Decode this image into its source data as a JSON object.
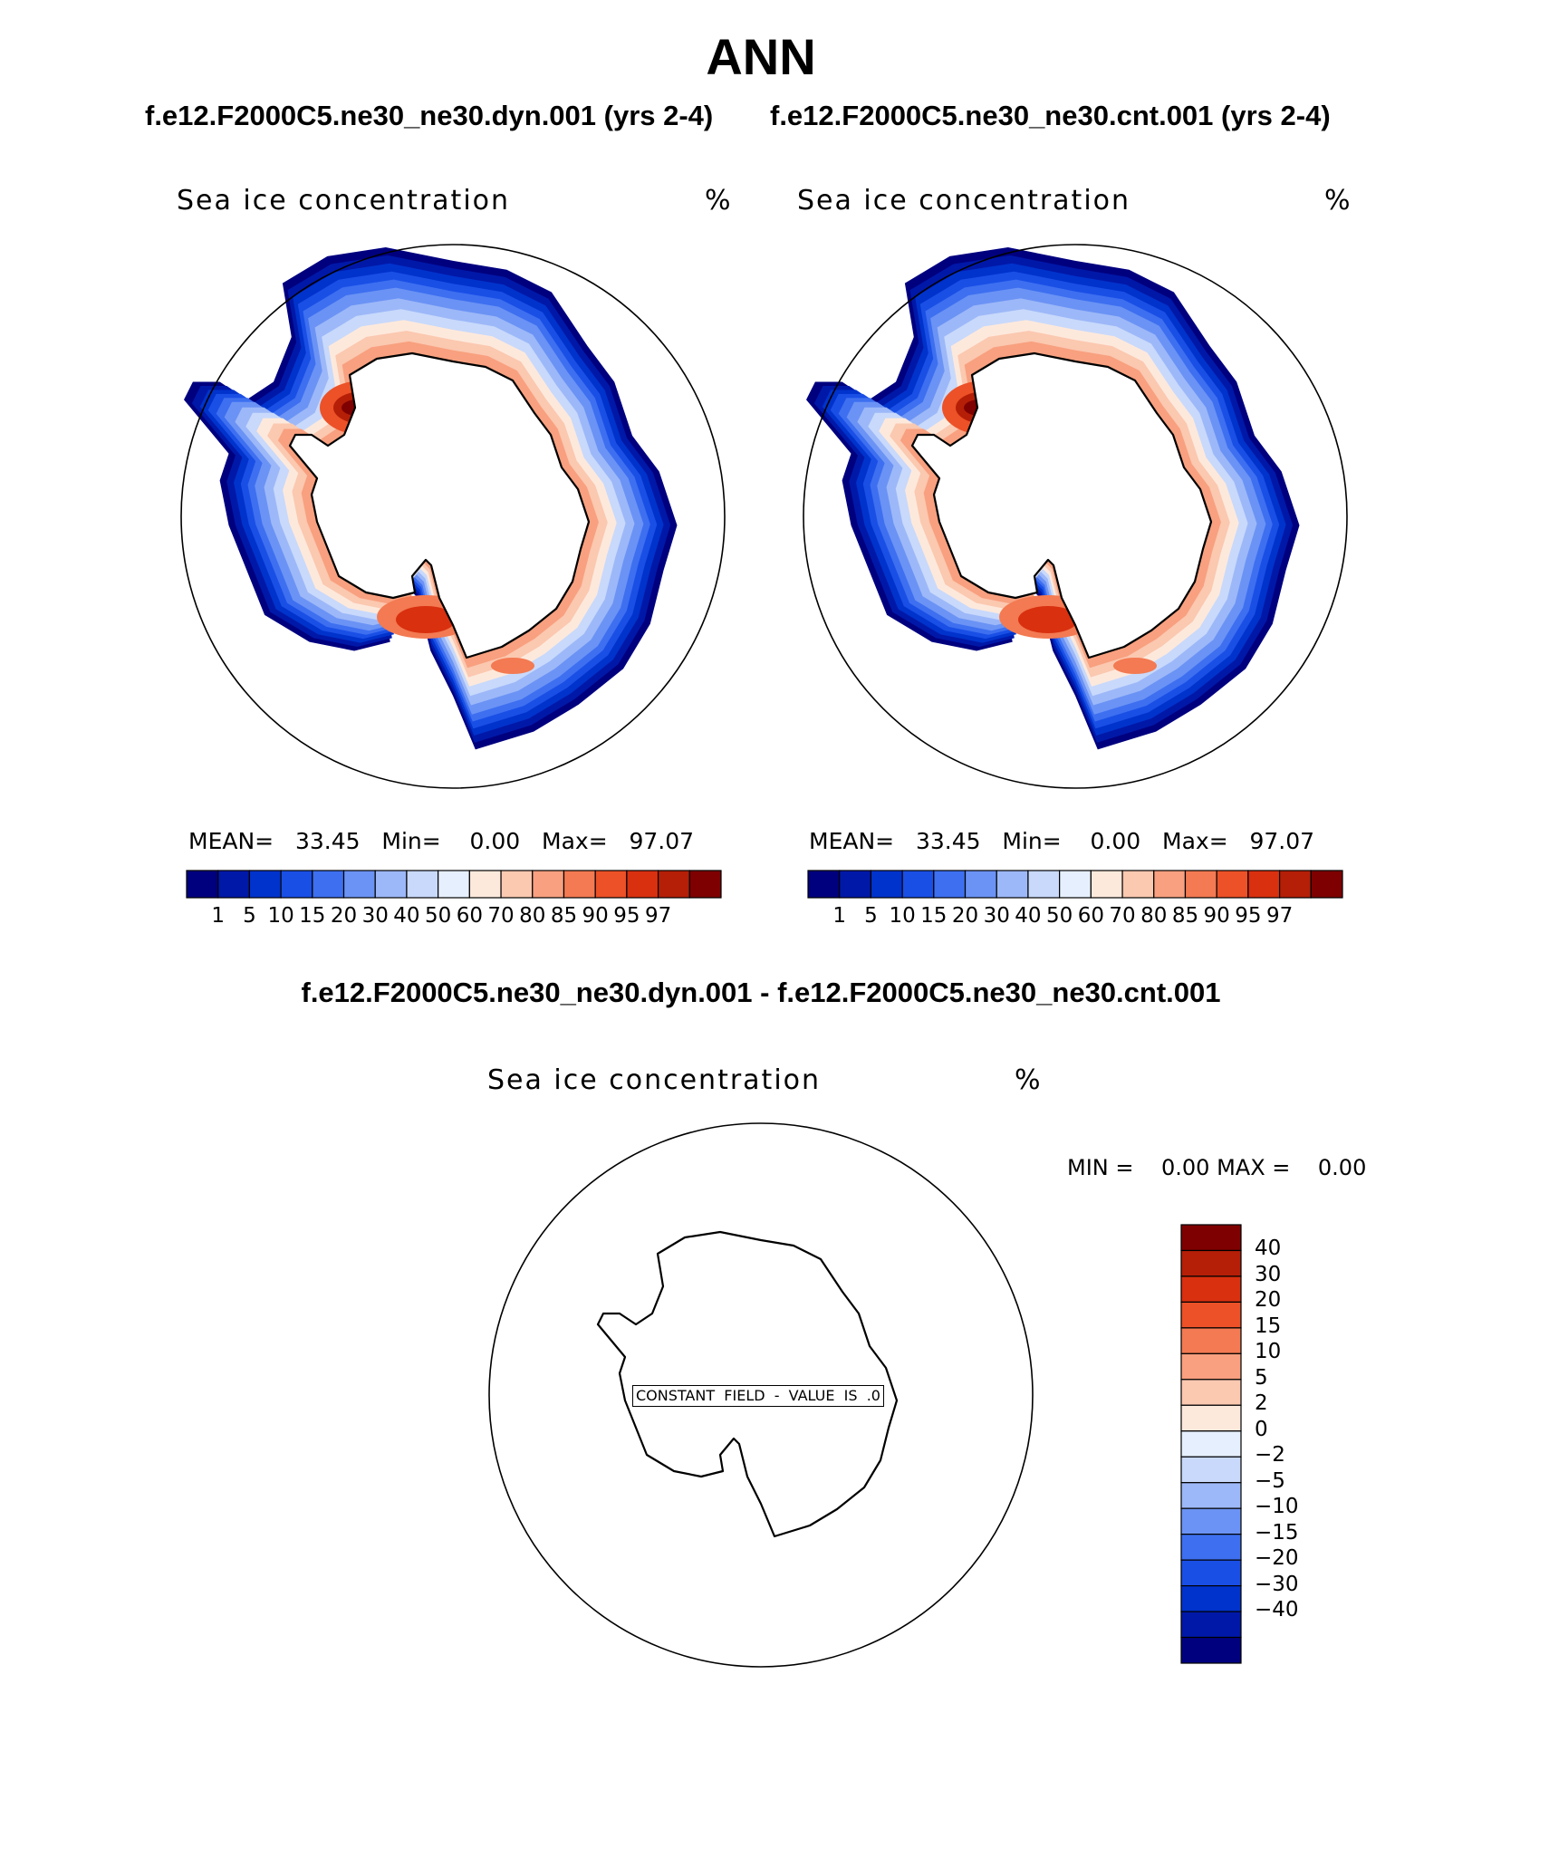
{
  "title": "ANN",
  "case_titles": {
    "left": "f.e12.F2000C5.ne30_ne30.dyn.001 (yrs 2-4)",
    "right": "f.e12.F2000C5.ne30_ne30.cnt.001 (yrs 2-4)"
  },
  "diff_title": "f.e12.F2000C5.ne30_ne30.dyn.001 - f.e12.F2000C5.ne30_ne30.cnt.001",
  "panels": [
    {
      "variable": "Sea ice concentration",
      "units": "%",
      "mean_label": "MEAN=",
      "mean": "33.45",
      "min_label": "Min=",
      "min": "0.00",
      "max_label": "Max=",
      "max": "97.07"
    },
    {
      "variable": "Sea ice concentration",
      "units": "%",
      "mean_label": "MEAN=",
      "mean": "33.45",
      "min_label": "Min=",
      "min": "0.00",
      "max_label": "Max=",
      "max": "97.07"
    }
  ],
  "diff_panel": {
    "variable": "Sea ice concentration",
    "units": "%",
    "min_label": "MIN =",
    "min": "0.00",
    "max_label": "MAX =",
    "max": "0.00",
    "constant_field_text": "CONSTANT  FIELD  -  VALUE  IS  .0"
  },
  "colorbar_levels": [
    "1",
    "5",
    "10",
    "15",
    "20",
    "30",
    "40",
    "50",
    "60",
    "70",
    "80",
    "85",
    "90",
    "95",
    "97"
  ],
  "colorbar_colors": [
    "#00007f",
    "#0018a8",
    "#0033cc",
    "#1a4fe6",
    "#3d6ff0",
    "#6b93f5",
    "#9db8f8",
    "#c8d9fb",
    "#e6effd",
    "#fde9dc",
    "#fbc8b0",
    "#f8a07f",
    "#f37a52",
    "#ec5127",
    "#d9300f",
    "#b51f07",
    "#7f0000"
  ],
  "diff_levels": [
    "40",
    "30",
    "20",
    "15",
    "10",
    "5",
    "2",
    "0",
    "−2",
    "−5",
    "−10",
    "−15",
    "−20",
    "−30",
    "−40"
  ],
  "diff_colors": [
    "#7f0000",
    "#b51f07",
    "#d9300f",
    "#ec5127",
    "#f37a52",
    "#f8a07f",
    "#fbc8b0",
    "#fde9dc",
    "#e6effd",
    "#c8d9fb",
    "#9db8f8",
    "#6b93f5",
    "#3d6ff0",
    "#1a4fe6",
    "#0033cc",
    "#0018a8",
    "#00007f"
  ]
}
